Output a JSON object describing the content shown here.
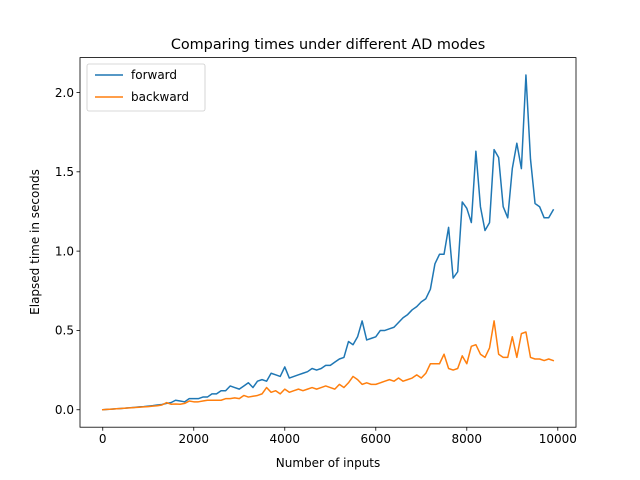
{
  "chart_data": {
    "type": "line",
    "title": "Comparing times under different AD modes",
    "xlabel": "Number of inputs",
    "ylabel": "Elapsed time in seconds",
    "xlim": [
      -500,
      10400
    ],
    "ylim": [
      -0.11,
      2.22
    ],
    "xticks": [
      0,
      2000,
      4000,
      6000,
      8000,
      10000
    ],
    "xtick_labels": [
      "0",
      "2000",
      "4000",
      "6000",
      "8000",
      "10000"
    ],
    "yticks": [
      0.0,
      0.5,
      1.0,
      1.5,
      2.0
    ],
    "ytick_labels": [
      "0.0",
      "0.5",
      "1.0",
      "1.5",
      "2.0"
    ],
    "legend_position": "top-left",
    "grid": false,
    "x": [
      0,
      100,
      200,
      300,
      400,
      500,
      600,
      700,
      800,
      900,
      1000,
      1100,
      1200,
      1300,
      1400,
      1500,
      1600,
      1700,
      1800,
      1900,
      2000,
      2100,
      2200,
      2300,
      2400,
      2500,
      2600,
      2700,
      2800,
      2900,
      3000,
      3100,
      3200,
      3300,
      3400,
      3500,
      3600,
      3700,
      3800,
      3900,
      4000,
      4100,
      4200,
      4300,
      4400,
      4500,
      4600,
      4700,
      4800,
      4900,
      5000,
      5100,
      5200,
      5300,
      5400,
      5500,
      5600,
      5700,
      5800,
      5900,
      6000,
      6100,
      6200,
      6300,
      6400,
      6500,
      6600,
      6700,
      6800,
      6900,
      7000,
      7100,
      7200,
      7300,
      7400,
      7500,
      7600,
      7700,
      7800,
      7900,
      8000,
      8100,
      8200,
      8300,
      8400,
      8500,
      8600,
      8700,
      8800,
      8900,
      9000,
      9100,
      9200,
      9300,
      9400,
      9500,
      9600,
      9700,
      9800,
      9900
    ],
    "series": [
      {
        "name": "forward",
        "color": "#1f77b4",
        "values": [
          0.0,
          0.002,
          0.004,
          0.006,
          0.008,
          0.01,
          0.013,
          0.015,
          0.018,
          0.02,
          0.023,
          0.026,
          0.03,
          0.033,
          0.04,
          0.045,
          0.06,
          0.055,
          0.05,
          0.07,
          0.07,
          0.07,
          0.08,
          0.08,
          0.1,
          0.1,
          0.12,
          0.12,
          0.15,
          0.14,
          0.13,
          0.15,
          0.17,
          0.14,
          0.18,
          0.19,
          0.18,
          0.23,
          0.22,
          0.21,
          0.27,
          0.2,
          0.21,
          0.22,
          0.23,
          0.24,
          0.26,
          0.25,
          0.26,
          0.28,
          0.28,
          0.3,
          0.32,
          0.33,
          0.43,
          0.41,
          0.46,
          0.56,
          0.44,
          0.45,
          0.46,
          0.5,
          0.5,
          0.51,
          0.52,
          0.55,
          0.58,
          0.6,
          0.63,
          0.65,
          0.68,
          0.7,
          0.76,
          0.92,
          0.98,
          0.98,
          1.15,
          0.83,
          0.87,
          1.31,
          1.27,
          1.18,
          1.63,
          1.28,
          1.13,
          1.18,
          1.64,
          1.59,
          1.28,
          1.21,
          1.52,
          1.68,
          1.52,
          2.11,
          1.58,
          1.3,
          1.28,
          1.21,
          1.21,
          1.26
        ]
      },
      {
        "name": "backward",
        "color": "#ff7f0e",
        "values": [
          0.0,
          0.002,
          0.004,
          0.006,
          0.008,
          0.01,
          0.012,
          0.014,
          0.016,
          0.018,
          0.02,
          0.023,
          0.025,
          0.03,
          0.045,
          0.035,
          0.036,
          0.035,
          0.04,
          0.055,
          0.05,
          0.05,
          0.055,
          0.06,
          0.06,
          0.06,
          0.06,
          0.07,
          0.07,
          0.075,
          0.07,
          0.09,
          0.08,
          0.085,
          0.09,
          0.1,
          0.14,
          0.11,
          0.12,
          0.1,
          0.13,
          0.11,
          0.12,
          0.13,
          0.12,
          0.13,
          0.14,
          0.13,
          0.14,
          0.15,
          0.14,
          0.13,
          0.16,
          0.14,
          0.17,
          0.21,
          0.19,
          0.16,
          0.17,
          0.16,
          0.16,
          0.17,
          0.18,
          0.19,
          0.18,
          0.2,
          0.18,
          0.19,
          0.2,
          0.22,
          0.2,
          0.23,
          0.29,
          0.29,
          0.29,
          0.35,
          0.26,
          0.25,
          0.26,
          0.34,
          0.29,
          0.4,
          0.41,
          0.35,
          0.33,
          0.39,
          0.56,
          0.35,
          0.33,
          0.33,
          0.46,
          0.33,
          0.48,
          0.49,
          0.33,
          0.32,
          0.32,
          0.31,
          0.32,
          0.31
        ]
      }
    ]
  }
}
